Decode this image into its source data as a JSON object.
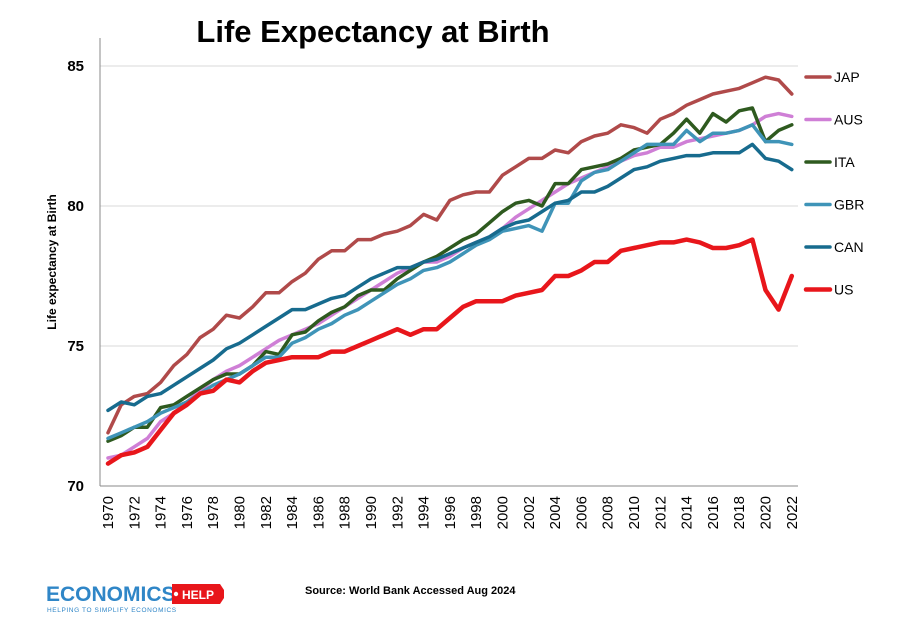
{
  "chart_data": {
    "type": "line",
    "title": "Life Expectancy at Birth",
    "xlabel": "",
    "ylabel": "Life expectancy at Birth",
    "ylim": [
      70,
      86
    ],
    "yticks": [
      70,
      75,
      80,
      85
    ],
    "ytick_labels": [
      "70",
      "75",
      "80",
      "85"
    ],
    "xlim": [
      1970,
      2023
    ],
    "xtick_labels": [
      "1970",
      "1972",
      "1974",
      "1976",
      "1978",
      "1980",
      "1982",
      "1984",
      "1986",
      "1988",
      "1990",
      "1992",
      "1994",
      "1996",
      "1998",
      "2000",
      "2002",
      "2004",
      "2006",
      "2008",
      "2010",
      "2012",
      "2014",
      "2016",
      "2018",
      "2020",
      "2022"
    ],
    "x": [
      1970,
      1971,
      1972,
      1973,
      1974,
      1975,
      1976,
      1977,
      1978,
      1979,
      1980,
      1981,
      1982,
      1983,
      1984,
      1985,
      1986,
      1987,
      1988,
      1989,
      1990,
      1991,
      1992,
      1993,
      1994,
      1995,
      1996,
      1997,
      1998,
      1999,
      2000,
      2001,
      2002,
      2003,
      2004,
      2005,
      2006,
      2007,
      2008,
      2009,
      2010,
      2011,
      2012,
      2013,
      2014,
      2015,
      2016,
      2017,
      2018,
      2019,
      2020,
      2021,
      2022
    ],
    "legend_position": "right",
    "grid": "horizontal",
    "series": [
      {
        "name": "JAP",
        "color": "#b04a4a",
        "values": [
          71.9,
          72.9,
          73.2,
          73.3,
          73.7,
          74.3,
          74.7,
          75.3,
          75.6,
          76.1,
          76.0,
          76.4,
          76.9,
          76.9,
          77.3,
          77.6,
          78.1,
          78.4,
          78.4,
          78.8,
          78.8,
          79.0,
          79.1,
          79.3,
          79.7,
          79.5,
          80.2,
          80.4,
          80.5,
          80.5,
          81.1,
          81.4,
          81.7,
          81.7,
          82.0,
          81.9,
          82.3,
          82.5,
          82.6,
          82.9,
          82.8,
          82.6,
          83.1,
          83.3,
          83.6,
          83.8,
          84.0,
          84.1,
          84.2,
          84.4,
          84.6,
          84.5,
          84.0
        ]
      },
      {
        "name": "AUS",
        "color": "#cf7fd6",
        "values": [
          71.0,
          71.1,
          71.4,
          71.7,
          72.3,
          72.6,
          73.0,
          73.4,
          73.8,
          74.1,
          74.3,
          74.6,
          74.9,
          75.2,
          75.4,
          75.6,
          75.8,
          76.1,
          76.4,
          76.7,
          77.0,
          77.3,
          77.6,
          77.8,
          78.0,
          78.0,
          78.2,
          78.5,
          78.7,
          78.9,
          79.2,
          79.6,
          79.9,
          80.2,
          80.5,
          80.8,
          81.0,
          81.2,
          81.4,
          81.6,
          81.8,
          81.9,
          82.1,
          82.1,
          82.3,
          82.4,
          82.5,
          82.6,
          82.7,
          82.9,
          83.2,
          83.3,
          83.2
        ]
      },
      {
        "name": "ITA",
        "color": "#2e5a1f",
        "values": [
          71.6,
          71.8,
          72.1,
          72.1,
          72.8,
          72.9,
          73.2,
          73.5,
          73.8,
          74.0,
          74.0,
          74.3,
          74.8,
          74.7,
          75.4,
          75.5,
          75.9,
          76.2,
          76.4,
          76.8,
          77.0,
          77.0,
          77.4,
          77.7,
          78.0,
          78.2,
          78.5,
          78.8,
          79.0,
          79.4,
          79.8,
          80.1,
          80.2,
          80.0,
          80.8,
          80.8,
          81.3,
          81.4,
          81.5,
          81.7,
          82.0,
          82.1,
          82.2,
          82.6,
          83.1,
          82.6,
          83.3,
          83.0,
          83.4,
          83.5,
          82.3,
          82.7,
          82.9
        ]
      },
      {
        "name": "GBR",
        "color": "#3f94b8",
        "values": [
          71.7,
          71.9,
          72.1,
          72.3,
          72.6,
          72.8,
          73.0,
          73.3,
          73.6,
          73.8,
          74.0,
          74.3,
          74.6,
          74.6,
          75.1,
          75.3,
          75.6,
          75.8,
          76.1,
          76.3,
          76.6,
          76.9,
          77.2,
          77.4,
          77.7,
          77.8,
          78.0,
          78.3,
          78.6,
          78.8,
          79.1,
          79.2,
          79.3,
          79.1,
          80.1,
          80.1,
          80.9,
          81.2,
          81.3,
          81.6,
          81.9,
          82.2,
          82.2,
          82.2,
          82.7,
          82.3,
          82.6,
          82.6,
          82.7,
          82.9,
          82.3,
          82.3,
          82.2
        ]
      },
      {
        "name": "CAN",
        "color": "#176b8e",
        "values": [
          72.7,
          73.0,
          72.9,
          73.2,
          73.3,
          73.6,
          73.9,
          74.2,
          74.5,
          74.9,
          75.1,
          75.4,
          75.7,
          76.0,
          76.3,
          76.3,
          76.5,
          76.7,
          76.8,
          77.1,
          77.4,
          77.6,
          77.8,
          77.8,
          78.0,
          78.1,
          78.3,
          78.5,
          78.7,
          78.9,
          79.2,
          79.4,
          79.5,
          79.8,
          80.1,
          80.2,
          80.5,
          80.5,
          80.7,
          81.0,
          81.3,
          81.4,
          81.6,
          81.7,
          81.8,
          81.8,
          81.9,
          81.9,
          81.9,
          82.2,
          81.7,
          81.6,
          81.3
        ]
      },
      {
        "name": "US",
        "color": "#e8161b",
        "values": [
          70.8,
          71.1,
          71.2,
          71.4,
          72.0,
          72.6,
          72.9,
          73.3,
          73.4,
          73.8,
          73.7,
          74.1,
          74.4,
          74.5,
          74.6,
          74.6,
          74.6,
          74.8,
          74.8,
          75.0,
          75.2,
          75.4,
          75.6,
          75.4,
          75.6,
          75.6,
          76.0,
          76.4,
          76.6,
          76.6,
          76.6,
          76.8,
          76.9,
          77.0,
          77.5,
          77.5,
          77.7,
          78.0,
          78.0,
          78.4,
          78.5,
          78.6,
          78.7,
          78.7,
          78.8,
          78.7,
          78.5,
          78.5,
          78.6,
          78.8,
          77.0,
          76.3,
          77.5
        ]
      }
    ]
  },
  "source": "Source: World Bank Accessed Aug 2024",
  "logo": {
    "main": "ECONOMICS",
    "badge": "HELP",
    "tagline": "HELPING TO SIMPLIFY ECONOMICS"
  },
  "colors": {
    "logo_blue": "#2f86c7",
    "logo_red": "#e8161b",
    "gridline": "#d9d9d9"
  }
}
